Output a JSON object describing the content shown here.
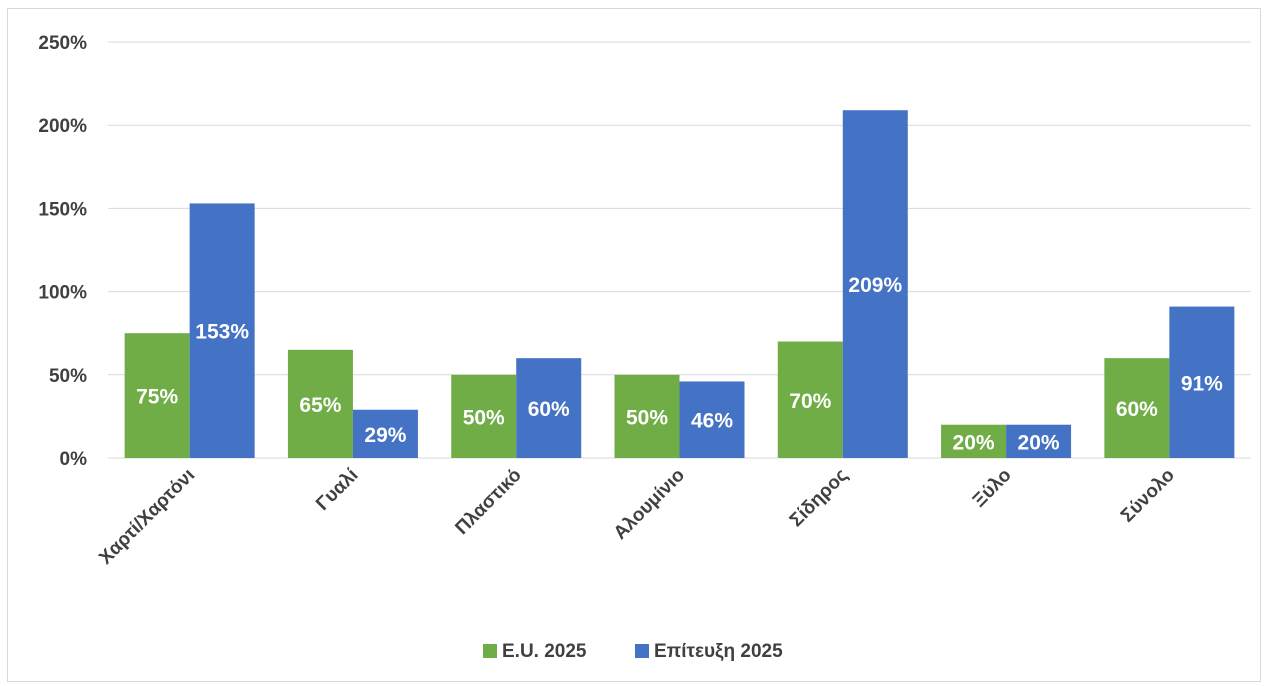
{
  "chart_data": {
    "type": "bar",
    "categories": [
      "Χαρτί/Χαρτόνι",
      "Γυαλί",
      "Πλαστικό",
      "Αλουμίνιο",
      "Σίδηρος",
      "Ξύλο",
      "Σύνολο"
    ],
    "series": [
      {
        "name": "E.U. 2025",
        "color": "#70ad47",
        "values": [
          75,
          65,
          50,
          50,
          70,
          20,
          60
        ],
        "labels": [
          "75%",
          "65%",
          "50%",
          "50%",
          "70%",
          "20%",
          "60%"
        ]
      },
      {
        "name": "Επίτευξη 2025",
        "color": "#4472c4",
        "values": [
          153,
          29,
          60,
          46,
          209,
          20,
          91
        ],
        "labels": [
          "153%",
          "29%",
          "60%",
          "46%",
          "209%",
          "20%",
          "91%"
        ]
      }
    ],
    "yticks": [
      0,
      50,
      100,
      150,
      200,
      250
    ],
    "ytick_labels": [
      "0%",
      "50%",
      "100%",
      "150%",
      "200%",
      "250%"
    ],
    "ylim": [
      0,
      250
    ],
    "grid": true,
    "legend": "bottom",
    "gridline_color": "#d9d9d9",
    "text_color": "#404040"
  }
}
